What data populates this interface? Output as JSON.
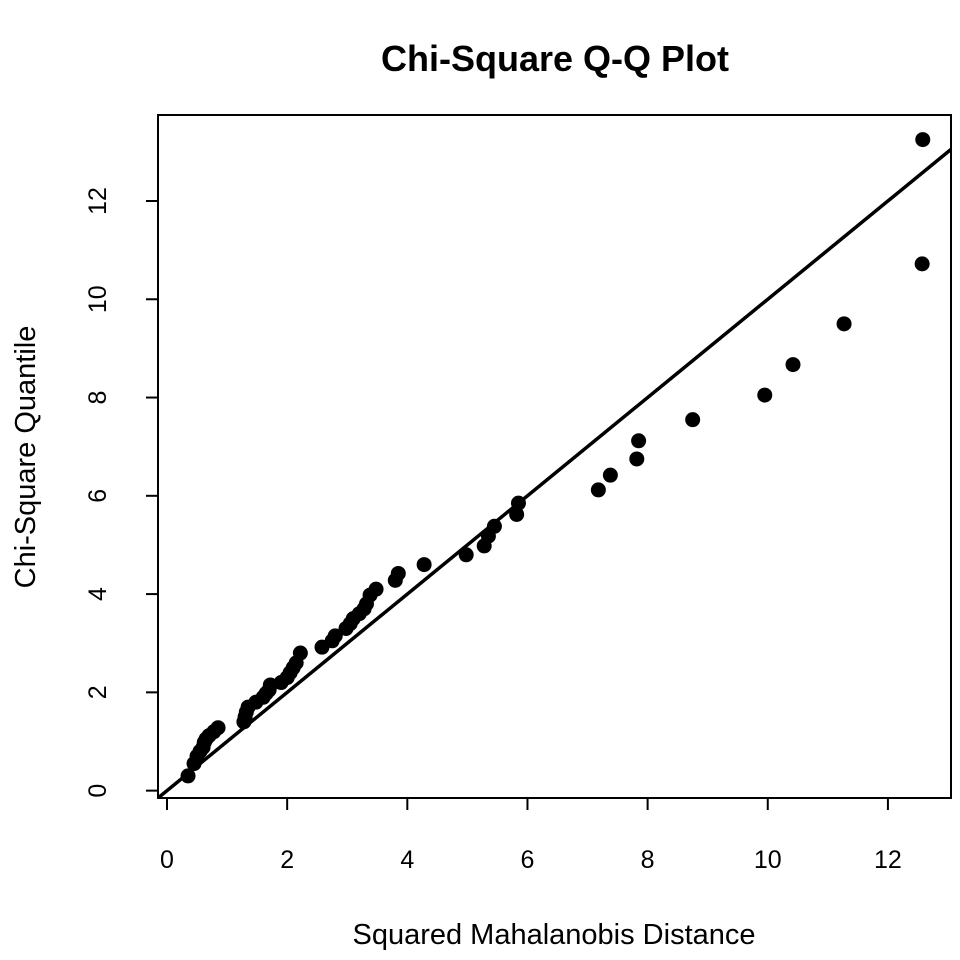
{
  "chart_data": {
    "type": "scatter",
    "title": "Chi-Square Q-Q Plot",
    "xlabel": "Squared Mahalanobis Distance",
    "ylabel": "Chi-Square Quantile",
    "xlim": [
      -0.15,
      13.05
    ],
    "ylim": [
      -0.15,
      13.75
    ],
    "xticks": [
      0,
      2,
      4,
      6,
      8,
      10,
      12
    ],
    "yticks": [
      0,
      2,
      4,
      6,
      8,
      10,
      12
    ],
    "grid": false,
    "legend": "none",
    "reference_line": {
      "slope": 1,
      "intercept": 0
    },
    "point_color": "#000000",
    "line_color": "#000000",
    "series": [
      {
        "x": [
          0.35,
          0.45,
          0.5,
          0.55,
          0.6,
          0.62,
          0.65,
          0.7,
          0.78,
          0.85,
          1.28,
          1.3,
          1.32,
          1.35,
          1.48,
          1.6,
          1.65,
          1.7,
          1.72,
          1.9,
          2.0,
          2.05,
          2.1,
          2.15,
          2.22,
          2.58,
          2.75,
          2.8,
          2.98,
          3.05,
          3.1,
          3.2,
          3.28,
          3.32,
          3.38,
          3.48,
          3.8,
          3.85,
          4.28,
          4.98,
          5.28,
          5.35,
          5.45,
          5.82,
          5.85,
          7.18,
          7.38,
          7.82,
          7.85,
          8.75,
          9.95,
          10.42,
          11.27,
          12.57,
          12.58
        ],
        "y": [
          0.3,
          0.55,
          0.7,
          0.8,
          0.88,
          0.98,
          1.05,
          1.12,
          1.2,
          1.28,
          1.4,
          1.5,
          1.6,
          1.7,
          1.8,
          1.9,
          1.98,
          2.05,
          2.15,
          2.2,
          2.3,
          2.4,
          2.5,
          2.6,
          2.8,
          2.92,
          3.05,
          3.15,
          3.3,
          3.4,
          3.5,
          3.6,
          3.7,
          3.8,
          3.98,
          4.1,
          4.28,
          4.42,
          4.6,
          4.8,
          4.98,
          5.18,
          5.38,
          5.62,
          5.85,
          6.12,
          6.42,
          6.75,
          7.12,
          7.55,
          8.05,
          8.67,
          9.5,
          10.72,
          13.25
        ]
      }
    ]
  }
}
